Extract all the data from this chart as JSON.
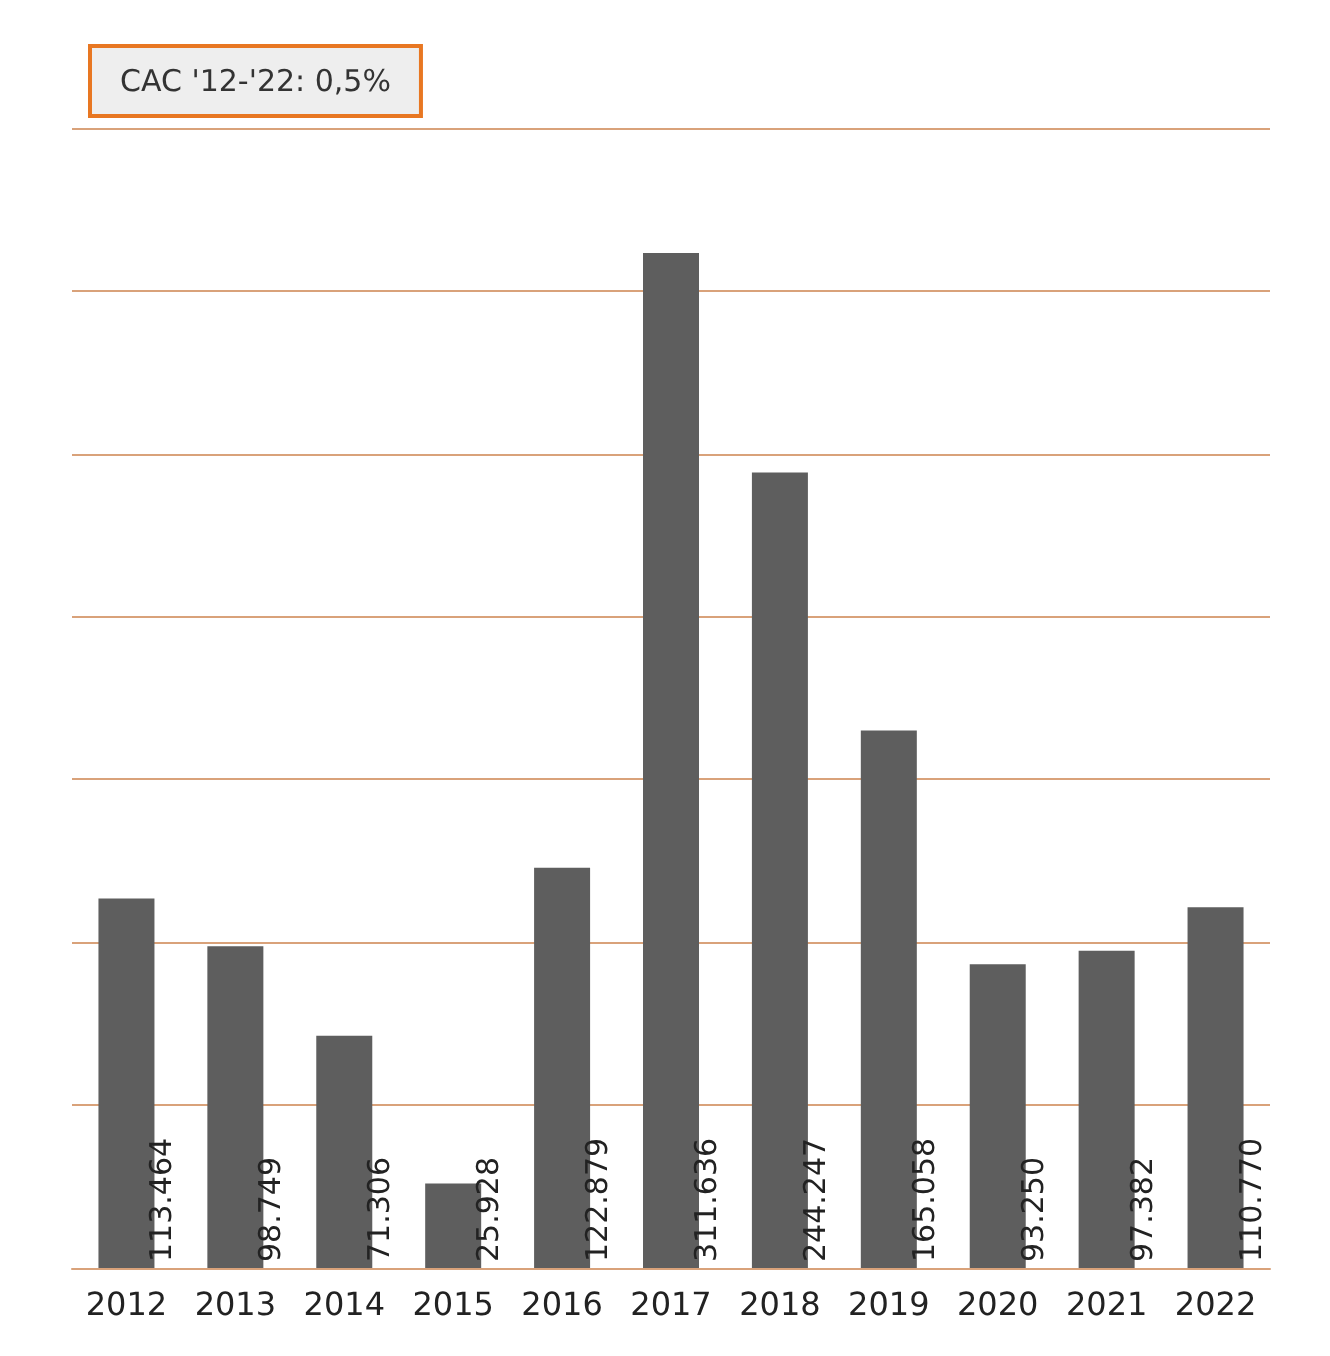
{
  "chart_data": {
    "type": "bar",
    "categories": [
      "2012",
      "2013",
      "2014",
      "2015",
      "2016",
      "2017",
      "2018",
      "2019",
      "2020",
      "2021",
      "2022"
    ],
    "values": [
      113.464,
      98.749,
      71.306,
      25.928,
      122.879,
      311.636,
      244.247,
      165.058,
      93.25,
      97.382,
      110.77
    ],
    "value_labels": [
      "113.464",
      "98.749",
      "71.306",
      "25.928",
      "122.879",
      "311.636",
      "244.247",
      "165.058",
      "93.250",
      "97.382",
      "110.770"
    ],
    "color": "#5e5e5e",
    "ylim": [
      0,
      350
    ],
    "yticks": [
      {
        "value": 0,
        "label": null
      },
      {
        "value": 50,
        "label": null
      },
      {
        "value": 100,
        "label": null
      },
      {
        "value": 150,
        "label": null
      },
      {
        "value": 200,
        "label": null
      },
      {
        "value": 250,
        "label": null
      },
      {
        "value": 300,
        "label": null
      },
      {
        "value": 350,
        "label": null
      }
    ],
    "grid": "y",
    "tick_labels": "x",
    "annotations": [
      "CAC '12-'22: 0,5%"
    ]
  }
}
